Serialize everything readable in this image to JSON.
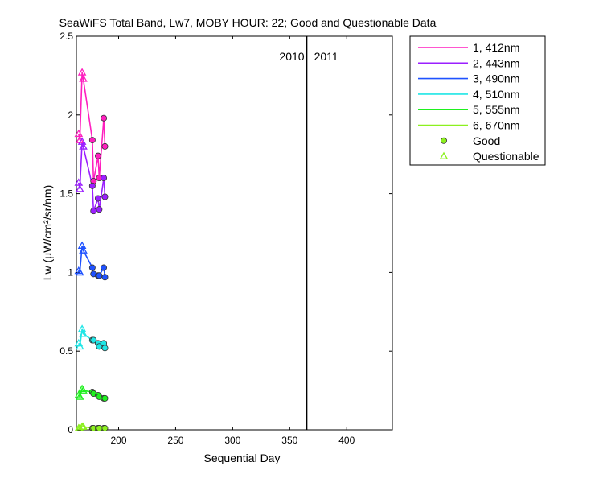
{
  "chart_data": {
    "type": "line",
    "title": "SeaWiFS Total Band,  Lw7, MOBY HOUR: 22;  Good and Questionable Data",
    "xlabel": "Sequential Day",
    "ylabel": "Lw (µW/cm²/sr/nm)",
    "xlim": [
      163,
      440
    ],
    "ylim": [
      0,
      2.5
    ],
    "xticks": [
      200,
      250,
      300,
      350,
      400
    ],
    "yticks": [
      0,
      0.5,
      1,
      1.5,
      2,
      2.5
    ],
    "xtick_labels": [
      "200",
      "250",
      "300",
      "350",
      "400"
    ],
    "ytick_labels": [
      "0",
      "0.5",
      "1",
      "1.5",
      "2",
      "2.5"
    ],
    "grid": false,
    "legend_position": "outside-top-right",
    "year_divider": {
      "x": 365,
      "left_label": "2010",
      "right_label": "2011"
    },
    "x": [
      165,
      166,
      168,
      169,
      177,
      178,
      182,
      183,
      187,
      188
    ],
    "flags": [
      "Q",
      "Q",
      "Q",
      "Q",
      "G",
      "G",
      "G",
      "G",
      "G",
      "G"
    ],
    "series": [
      {
        "name": "1, 412nm",
        "color": "#ff1fbf",
        "values": [
          1.88,
          1.84,
          2.27,
          2.23,
          1.84,
          1.58,
          1.74,
          1.6,
          1.98,
          1.8
        ]
      },
      {
        "name": "2, 443nm",
        "color": "#9b1fff",
        "values": [
          1.57,
          1.53,
          1.83,
          1.8,
          1.55,
          1.39,
          1.47,
          1.4,
          1.6,
          1.48
        ]
      },
      {
        "name": "3, 490nm",
        "color": "#1f52ff",
        "values": [
          1.01,
          1.0,
          1.17,
          1.14,
          1.03,
          0.99,
          0.98,
          0.98,
          1.03,
          0.97
        ]
      },
      {
        "name": "4, 510nm",
        "color": "#1fe6e6",
        "values": [
          0.55,
          0.53,
          0.64,
          0.61,
          0.57,
          0.57,
          0.55,
          0.53,
          0.55,
          0.52
        ]
      },
      {
        "name": "5, 555nm",
        "color": "#1ff01f",
        "values": [
          0.22,
          0.21,
          0.26,
          0.25,
          0.24,
          0.23,
          0.22,
          0.21,
          0.2,
          0.2
        ]
      },
      {
        "name": "6, 670nm",
        "color": "#8cf01f",
        "values": [
          0.01,
          0.01,
          0.02,
          0.02,
          0.01,
          0.01,
          0.01,
          0.01,
          0.01,
          0.01
        ]
      }
    ],
    "marker_legend": {
      "good": {
        "label": "Good",
        "color": "#8cf01f"
      },
      "questionable": {
        "label": "Questionable",
        "color": "#8cf01f"
      }
    }
  }
}
